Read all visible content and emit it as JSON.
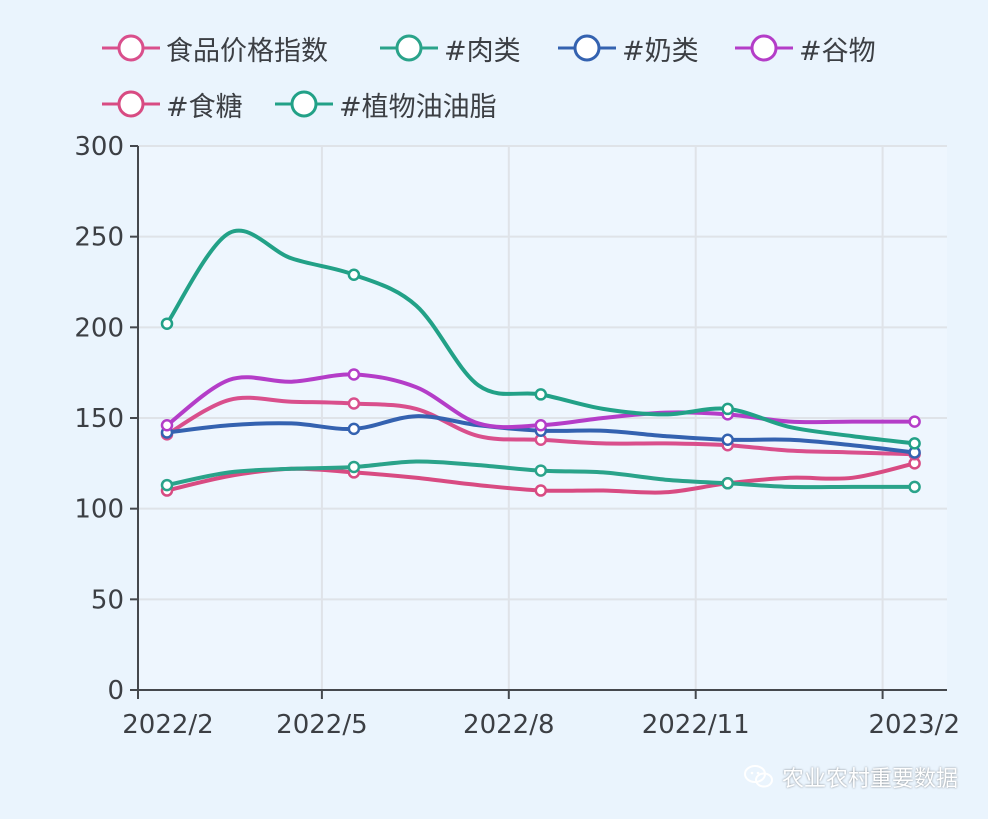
{
  "chart_data": {
    "type": "line",
    "title": "",
    "xlabel": "",
    "ylabel": "",
    "x": [
      "2022/2",
      "2022/3",
      "2022/4",
      "2022/5",
      "2022/6",
      "2022/7",
      "2022/8",
      "2022/9",
      "2022/10",
      "2022/11",
      "2022/12",
      "2023/1",
      "2023/2"
    ],
    "x_ticks": [
      "2022/2",
      "2022/5",
      "2022/8",
      "2022/11",
      "2023/2"
    ],
    "y_ticks": [
      0,
      50,
      100,
      150,
      200,
      250,
      300
    ],
    "ylim": [
      0,
      300
    ],
    "grid": true,
    "legend_position": "top",
    "series": [
      {
        "name": "食品价格指数",
        "color": "#d94f8c",
        "values": [
          141,
          160,
          159,
          158,
          155,
          140,
          138,
          136,
          136,
          135,
          132,
          131,
          130
        ],
        "markers": [
          0,
          3,
          6,
          9,
          12
        ]
      },
      {
        "name": "#肉类",
        "color": "#2aa38a",
        "values": [
          113,
          120,
          122,
          123,
          126,
          124,
          121,
          120,
          116,
          114,
          112,
          112,
          112
        ],
        "markers": [
          0,
          3,
          6,
          9,
          12
        ]
      },
      {
        "name": "#奶类",
        "color": "#3462b0",
        "values": [
          142,
          146,
          147,
          144,
          151,
          146,
          143,
          143,
          140,
          138,
          138,
          135,
          131
        ],
        "markers": [
          0,
          3,
          6,
          9,
          12
        ]
      },
      {
        "name": "#谷物",
        "color": "#b43dc8",
        "values": [
          146,
          171,
          170,
          174,
          167,
          147,
          146,
          150,
          153,
          152,
          148,
          148,
          148
        ],
        "markers": [
          0,
          3,
          6,
          9,
          12
        ]
      },
      {
        "name": "#食糖",
        "color": "#d84b82",
        "values": [
          110,
          118,
          122,
          120,
          117,
          113,
          110,
          110,
          109,
          114,
          117,
          117,
          125
        ],
        "markers": [
          0,
          3,
          6,
          9,
          12
        ]
      },
      {
        "name": "#植物油油脂",
        "color": "#22a187",
        "values": [
          202,
          252,
          238,
          229,
          212,
          168,
          163,
          155,
          152,
          155,
          145,
          140,
          136
        ],
        "markers": [
          0,
          3,
          6,
          9,
          12
        ]
      }
    ]
  },
  "watermark": {
    "text": "农业农村重要数据",
    "icon": "wechat-icon"
  }
}
